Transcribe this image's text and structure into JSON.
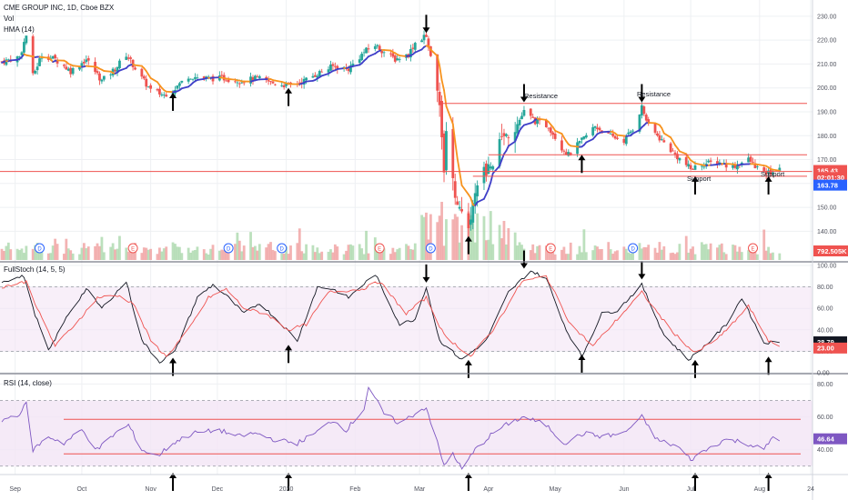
{
  "chart_data": [
    {
      "type": "candlestick",
      "title": "CME GROUP INC, 1D, Cboe BZX",
      "legend": [
        "Vol",
        "HMA (14)"
      ],
      "y_ticks": [
        "230.00",
        "220.00",
        "210.00",
        "200.00",
        "190.00",
        "180.00",
        "170.00",
        "160.00",
        "150.00",
        "140.00"
      ],
      "ylim": [
        131,
        233
      ],
      "price_tags": [
        {
          "label": "165.43",
          "value": 165.43,
          "color": "#ef5350"
        },
        {
          "label": "02:01:30",
          "value": 162.5,
          "color": "#ef5350"
        },
        {
          "label": "163.78",
          "value": 159.3,
          "color": "#2962ff"
        }
      ],
      "volume_tag": {
        "label": "792.505K",
        "color": "#ef5350"
      },
      "annotations": [
        "Resistance",
        "Resistance",
        "Support",
        "Support"
      ],
      "resistance_lines": [
        193.5,
        172.0
      ],
      "support_lines": [
        165.0,
        163.0
      ],
      "events": [
        {
          "letter": "D",
          "color": "#2962ff",
          "date": "Sep 12"
        },
        {
          "letter": "E",
          "color": "#ef5350",
          "date": "Oct 24"
        },
        {
          "letter": "D",
          "color": "#2962ff",
          "date": "Dec 6"
        },
        {
          "letter": "D",
          "color": "#2962ff",
          "date": "Dec 30"
        },
        {
          "letter": "E",
          "color": "#ef5350",
          "date": "Feb 12"
        },
        {
          "letter": "D",
          "color": "#2962ff",
          "date": "Mar 6"
        },
        {
          "letter": "E",
          "color": "#ef5350",
          "date": "Apr 29"
        },
        {
          "letter": "D",
          "color": "#2962ff",
          "date": "Jun 5"
        },
        {
          "letter": "E",
          "color": "#ef5350",
          "date": "Jul 29"
        }
      ],
      "anchors": [
        [
          "2019-08-26",
          211
        ],
        [
          "2019-09-03",
          213
        ],
        [
          "2019-09-06",
          222
        ],
        [
          "2019-09-09",
          205
        ],
        [
          "2019-09-13",
          214
        ],
        [
          "2019-09-19",
          212
        ],
        [
          "2019-09-26",
          207
        ],
        [
          "2019-10-03",
          212
        ],
        [
          "2019-10-10",
          203
        ],
        [
          "2019-10-16",
          208
        ],
        [
          "2019-10-21",
          214
        ],
        [
          "2019-10-28",
          204
        ],
        [
          "2019-11-01",
          199
        ],
        [
          "2019-11-07",
          197
        ],
        [
          "2019-11-12",
          200
        ],
        [
          "2019-11-18",
          205
        ],
        [
          "2019-11-25",
          204
        ],
        [
          "2019-12-04",
          204
        ],
        [
          "2019-12-12",
          203
        ],
        [
          "2019-12-19",
          204
        ],
        [
          "2019-12-26",
          202
        ],
        [
          "2020-01-02",
          201
        ],
        [
          "2020-01-09",
          203
        ],
        [
          "2020-01-15",
          206
        ],
        [
          "2020-01-22",
          209
        ],
        [
          "2020-01-29",
          208
        ],
        [
          "2020-02-05",
          215
        ],
        [
          "2020-02-10",
          218
        ],
        [
          "2020-02-14",
          215
        ],
        [
          "2020-02-19",
          212
        ],
        [
          "2020-02-25",
          214
        ],
        [
          "2020-02-28",
          219
        ],
        [
          "2020-03-04",
          222
        ],
        [
          "2020-03-06",
          214
        ],
        [
          "2020-03-09",
          200
        ],
        [
          "2020-03-12",
          168
        ],
        [
          "2020-03-13",
          180
        ],
        [
          "2020-03-16",
          160
        ],
        [
          "2020-03-19",
          148
        ],
        [
          "2020-03-23",
          140
        ],
        [
          "2020-03-26",
          155
        ],
        [
          "2020-03-31",
          166
        ],
        [
          "2020-04-03",
          170
        ],
        [
          "2020-04-08",
          180
        ],
        [
          "2020-04-14",
          185
        ],
        [
          "2020-04-17",
          190
        ],
        [
          "2020-04-22",
          186
        ],
        [
          "2020-04-28",
          184
        ],
        [
          "2020-05-04",
          175
        ],
        [
          "2020-05-07",
          172
        ],
        [
          "2020-05-13",
          178
        ],
        [
          "2020-05-19",
          184
        ],
        [
          "2020-05-25",
          180
        ],
        [
          "2020-06-01",
          178
        ],
        [
          "2020-06-05",
          183
        ],
        [
          "2020-06-09",
          192
        ],
        [
          "2020-06-12",
          184
        ],
        [
          "2020-06-18",
          178
        ],
        [
          "2020-06-24",
          172
        ],
        [
          "2020-07-01",
          166
        ],
        [
          "2020-07-06",
          168
        ],
        [
          "2020-07-13",
          169
        ],
        [
          "2020-07-20",
          167
        ],
        [
          "2020-07-27",
          170
        ],
        [
          "2020-08-03",
          164
        ],
        [
          "2020-08-07",
          165
        ],
        [
          "2020-08-10",
          165.43
        ]
      ],
      "x_labels": [
        "Sep",
        "Oct",
        "Nov",
        "Dec",
        "2020",
        "Feb",
        "Mar",
        "Apr",
        "May",
        "Jun",
        "Jul",
        "Aug",
        "24"
      ]
    },
    {
      "type": "line",
      "title": "FullStoch (14, 5, 5)",
      "y_ticks": [
        "100.00",
        "80.00",
        "60.00",
        "40.00",
        "20.00",
        "0.00"
      ],
      "ylim": [
        0,
        100
      ],
      "levels": [
        80,
        20
      ],
      "tags": [
        {
          "label": "28.79",
          "value": 28.79,
          "color": "#131722"
        },
        {
          "label": "23.00",
          "value": 23.0,
          "color": "#ef5350"
        }
      ],
      "series": [
        {
          "color": "#131722",
          "anchors": [
            [
              "2019-08-26",
              85
            ],
            [
              "2019-09-05",
              90
            ],
            [
              "2019-09-09",
              60
            ],
            [
              "2019-09-16",
              20
            ],
            [
              "2019-09-25",
              55
            ],
            [
              "2019-10-03",
              78
            ],
            [
              "2019-10-10",
              60
            ],
            [
              "2019-10-21",
              85
            ],
            [
              "2019-10-28",
              30
            ],
            [
              "2019-11-05",
              10
            ],
            [
              "2019-11-12",
              20
            ],
            [
              "2019-11-22",
              70
            ],
            [
              "2019-11-29",
              82
            ],
            [
              "2019-12-06",
              70
            ],
            [
              "2019-12-13",
              55
            ],
            [
              "2019-12-20",
              65
            ],
            [
              "2019-12-30",
              45
            ],
            [
              "2020-01-06",
              30
            ],
            [
              "2020-01-15",
              80
            ],
            [
              "2020-01-22",
              78
            ],
            [
              "2020-01-29",
              70
            ],
            [
              "2020-02-10",
              92
            ],
            [
              "2020-02-21",
              45
            ],
            [
              "2020-02-28",
              50
            ],
            [
              "2020-03-04",
              80
            ],
            [
              "2020-03-10",
              30
            ],
            [
              "2020-03-20",
              12
            ],
            [
              "2020-03-31",
              30
            ],
            [
              "2020-04-10",
              75
            ],
            [
              "2020-04-20",
              95
            ],
            [
              "2020-04-27",
              88
            ],
            [
              "2020-05-06",
              40
            ],
            [
              "2020-05-13",
              15
            ],
            [
              "2020-05-22",
              55
            ],
            [
              "2020-05-29",
              58
            ],
            [
              "2020-06-09",
              82
            ],
            [
              "2020-06-19",
              35
            ],
            [
              "2020-06-30",
              12
            ],
            [
              "2020-07-10",
              30
            ],
            [
              "2020-07-17",
              45
            ],
            [
              "2020-07-24",
              70
            ],
            [
              "2020-08-03",
              28
            ],
            [
              "2020-08-10",
              28.79
            ]
          ]
        },
        {
          "color": "#ef5350",
          "anchors": [
            [
              "2019-08-26",
              80
            ],
            [
              "2019-09-06",
              85
            ],
            [
              "2019-09-12",
              55
            ],
            [
              "2019-09-19",
              25
            ],
            [
              "2019-09-30",
              50
            ],
            [
              "2019-10-08",
              70
            ],
            [
              "2019-10-17",
              72
            ],
            [
              "2019-10-24",
              65
            ],
            [
              "2019-11-01",
              30
            ],
            [
              "2019-11-08",
              15
            ],
            [
              "2019-11-18",
              40
            ],
            [
              "2019-11-27",
              70
            ],
            [
              "2019-12-05",
              78
            ],
            [
              "2019-12-13",
              60
            ],
            [
              "2019-12-23",
              55
            ],
            [
              "2020-01-02",
              40
            ],
            [
              "2020-01-10",
              45
            ],
            [
              "2020-01-20",
              75
            ],
            [
              "2020-02-04",
              78
            ],
            [
              "2020-02-12",
              85
            ],
            [
              "2020-02-24",
              55
            ],
            [
              "2020-03-04",
              70
            ],
            [
              "2020-03-12",
              35
            ],
            [
              "2020-03-24",
              15
            ],
            [
              "2020-04-03",
              40
            ],
            [
              "2020-04-16",
              85
            ],
            [
              "2020-04-27",
              90
            ],
            [
              "2020-05-08",
              45
            ],
            [
              "2020-05-18",
              25
            ],
            [
              "2020-05-29",
              50
            ],
            [
              "2020-06-09",
              75
            ],
            [
              "2020-06-22",
              40
            ],
            [
              "2020-07-03",
              18
            ],
            [
              "2020-07-15",
              35
            ],
            [
              "2020-07-27",
              62
            ],
            [
              "2020-08-05",
              30
            ],
            [
              "2020-08-10",
              23.0
            ]
          ]
        }
      ]
    },
    {
      "type": "line",
      "title": "RSI (14, close)",
      "y_ticks": [
        "80.00",
        "60.00",
        "40.00"
      ],
      "ylim": [
        26,
        83
      ],
      "levels": [
        70,
        30
      ],
      "horizontal_lines": [
        58.5,
        37.5
      ],
      "tag": {
        "label": "46.64",
        "value": 46.64,
        "color": "#7e57c2"
      },
      "series": [
        {
          "color": "#7e57c2",
          "anchors": [
            [
              "2019-08-26",
              58
            ],
            [
              "2019-09-03",
              62
            ],
            [
              "2019-09-06",
              68
            ],
            [
              "2019-09-09",
              40
            ],
            [
              "2019-09-16",
              48
            ],
            [
              "2019-09-23",
              44
            ],
            [
              "2019-10-01",
              52
            ],
            [
              "2019-10-08",
              40
            ],
            [
              "2019-10-16",
              50
            ],
            [
              "2019-10-22",
              55
            ],
            [
              "2019-10-28",
              40
            ],
            [
              "2019-11-04",
              36
            ],
            [
              "2019-11-11",
              44
            ],
            [
              "2019-11-20",
              50
            ],
            [
              "2019-12-02",
              52
            ],
            [
              "2019-12-10",
              48
            ],
            [
              "2019-12-18",
              50
            ],
            [
              "2019-12-27",
              46
            ],
            [
              "2020-01-06",
              44
            ],
            [
              "2020-01-14",
              50
            ],
            [
              "2020-01-22",
              58
            ],
            [
              "2020-01-28",
              52
            ],
            [
              "2020-02-05",
              65
            ],
            [
              "2020-02-07",
              78
            ],
            [
              "2020-02-14",
              62
            ],
            [
              "2020-02-21",
              56
            ],
            [
              "2020-02-28",
              62
            ],
            [
              "2020-03-04",
              66
            ],
            [
              "2020-03-09",
              44
            ],
            [
              "2020-03-12",
              30
            ],
            [
              "2020-03-16",
              38
            ],
            [
              "2020-03-20",
              28
            ],
            [
              "2020-03-26",
              40
            ],
            [
              "2020-04-03",
              50
            ],
            [
              "2020-04-10",
              56
            ],
            [
              "2020-04-17",
              60
            ],
            [
              "2020-04-27",
              55
            ],
            [
              "2020-05-05",
              44
            ],
            [
              "2020-05-14",
              50
            ],
            [
              "2020-05-22",
              48
            ],
            [
              "2020-06-01",
              50
            ],
            [
              "2020-06-09",
              60
            ],
            [
              "2020-06-16",
              46
            ],
            [
              "2020-06-25",
              42
            ],
            [
              "2020-07-01",
              34
            ],
            [
              "2020-07-08",
              40
            ],
            [
              "2020-07-16",
              46
            ],
            [
              "2020-07-24",
              45
            ],
            [
              "2020-08-03",
              40
            ],
            [
              "2020-08-07",
              48
            ],
            [
              "2020-08-10",
              46.64
            ]
          ]
        }
      ]
    }
  ],
  "arrows": [
    {
      "dir": "up",
      "date": "2019-11-11",
      "pane": "price",
      "value": 198
    },
    {
      "dir": "up",
      "date": "2020-01-02",
      "pane": "price",
      "value": 200
    },
    {
      "dir": "down",
      "date": "2020-03-04",
      "pane": "price",
      "value": 223
    },
    {
      "dir": "up",
      "date": "2020-03-23",
      "pane": "price",
      "value": 138
    },
    {
      "dir": "down",
      "date": "2020-04-17",
      "pane": "price",
      "value": 194
    },
    {
      "dir": "up",
      "date": "2020-05-13",
      "pane": "price",
      "value": 172
    },
    {
      "dir": "down",
      "date": "2020-06-09",
      "pane": "price",
      "value": 194
    },
    {
      "dir": "up",
      "date": "2020-07-03",
      "pane": "price",
      "value": 163
    },
    {
      "dir": "up",
      "date": "2020-08-05",
      "pane": "price",
      "value": 163
    },
    {
      "dir": "up",
      "date": "2019-11-11",
      "pane": "stoch",
      "value": 14
    },
    {
      "dir": "up",
      "date": "2020-01-02",
      "pane": "stoch",
      "value": 26
    },
    {
      "dir": "down",
      "date": "2020-03-04",
      "pane": "stoch",
      "value": 84
    },
    {
      "dir": "up",
      "date": "2020-03-23",
      "pane": "stoch",
      "value": 12
    },
    {
      "dir": "down",
      "date": "2020-04-17",
      "pane": "stoch",
      "value": 97
    },
    {
      "dir": "up",
      "date": "2020-05-13",
      "pane": "stoch",
      "value": 17
    },
    {
      "dir": "down",
      "date": "2020-06-09",
      "pane": "stoch",
      "value": 87
    },
    {
      "dir": "up",
      "date": "2020-07-03",
      "pane": "stoch",
      "value": 12
    },
    {
      "dir": "up",
      "date": "2020-08-05",
      "pane": "stoch",
      "value": 15
    },
    {
      "dir": "up",
      "date": "2019-11-11",
      "pane": "rsi",
      "value": 26
    },
    {
      "dir": "up",
      "date": "2020-01-02",
      "pane": "rsi",
      "value": 26
    },
    {
      "dir": "up",
      "date": "2020-03-23",
      "pane": "rsi",
      "value": 26
    },
    {
      "dir": "up",
      "date": "2020-07-03",
      "pane": "rsi",
      "value": 26
    },
    {
      "dir": "up",
      "date": "2020-08-05",
      "pane": "rsi",
      "value": 26
    }
  ],
  "colors": {
    "up": "#26a69a",
    "down": "#ef5350",
    "hma_up": "#3f3fc8",
    "hma_down": "#f7931e",
    "grid": "#eef0f3",
    "axis_text": "#50535e",
    "band_fill": "#f3e5f5",
    "volume_up": "#a5d6a7",
    "volume_down": "#ef9a9a",
    "level_line": "#ef5350"
  }
}
